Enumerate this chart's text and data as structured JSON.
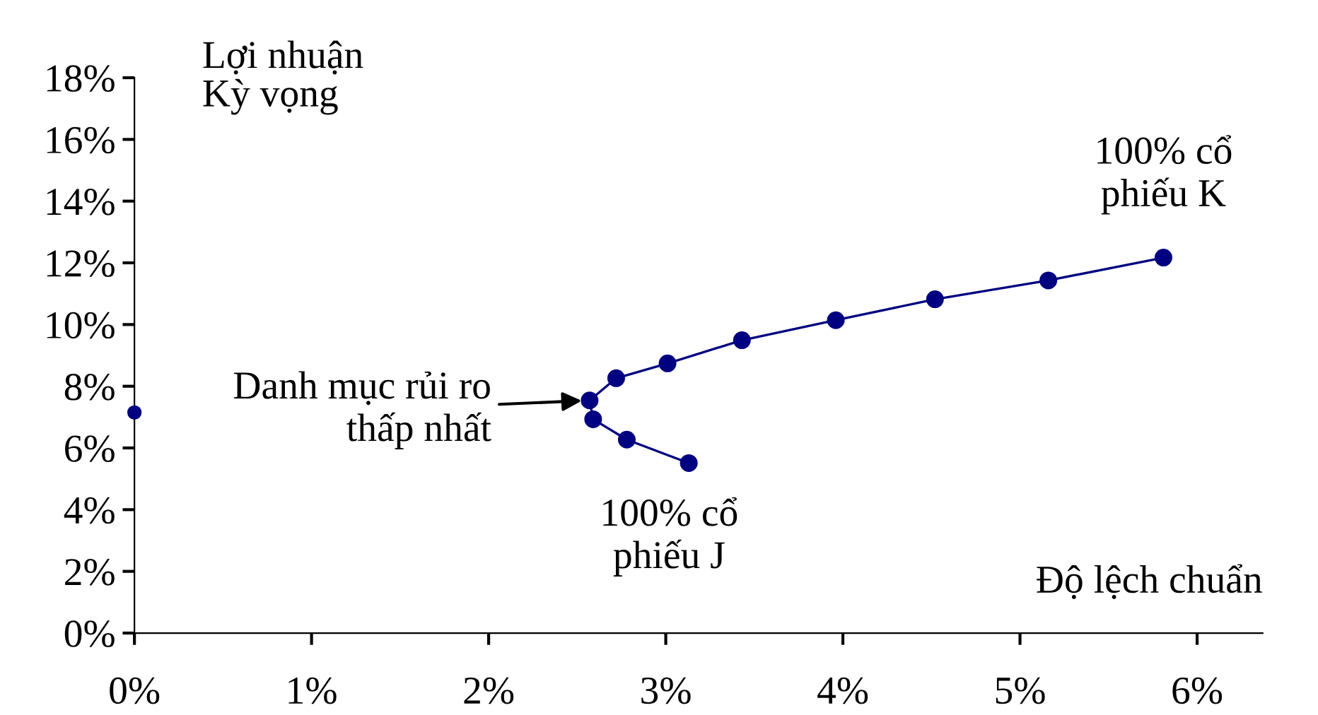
{
  "chart_data": {
    "type": "line",
    "xlabel": "Độ lệch chuẩn",
    "ylabel": "Lợi nhuận\nKỳ vọng",
    "series": [
      {
        "color": "#000080",
        "marker": "circle",
        "line_style": "solid",
        "x": [
          3.13,
          2.78,
          2.59,
          2.57,
          2.72,
          3.01,
          3.43,
          3.96,
          4.52,
          5.16,
          5.81
        ],
        "values": [
          5.51,
          6.27,
          6.93,
          7.54,
          8.26,
          8.74,
          9.49,
          10.14,
          10.82,
          11.43,
          12.17
        ]
      },
      {
        "type": "scatter",
        "color": "#000080",
        "marker": "circle",
        "x": [
          0
        ],
        "values": [
          7.15
        ]
      }
    ],
    "annotations": [
      {
        "text": "100% cổ\nphiếu K",
        "x": 5.81,
        "y": 12.17
      },
      {
        "text": "100% cổ\nphiếu J",
        "x": 3.13,
        "y": 5.51
      },
      {
        "text": "Danh mục rủi ro\nthấp nhất",
        "x": 2.57,
        "y": 7.54
      }
    ],
    "xlim": [
      0,
      6.37
    ],
    "ylim": [
      0,
      18
    ],
    "xticks": [
      {
        "value": 0,
        "label": "0%"
      },
      {
        "value": 1,
        "label": "1%"
      },
      {
        "value": 2,
        "label": "2%"
      },
      {
        "value": 3,
        "label": "3%"
      },
      {
        "value": 4,
        "label": "4%"
      },
      {
        "value": 5,
        "label": "5%"
      },
      {
        "value": 6,
        "label": "6%"
      }
    ],
    "yticks": [
      {
        "value": 0,
        "label": "0%"
      },
      {
        "value": 2,
        "label": "2%"
      },
      {
        "value": 4,
        "label": "4%"
      },
      {
        "value": 6,
        "label": "6%"
      },
      {
        "value": 8,
        "label": "8%"
      },
      {
        "value": 10,
        "label": "10%"
      },
      {
        "value": 12,
        "label": "12%"
      },
      {
        "value": 14,
        "label": "14%"
      },
      {
        "value": 16,
        "label": "16%"
      },
      {
        "value": 18,
        "label": "18%"
      }
    ],
    "grid": false,
    "legend": false
  }
}
